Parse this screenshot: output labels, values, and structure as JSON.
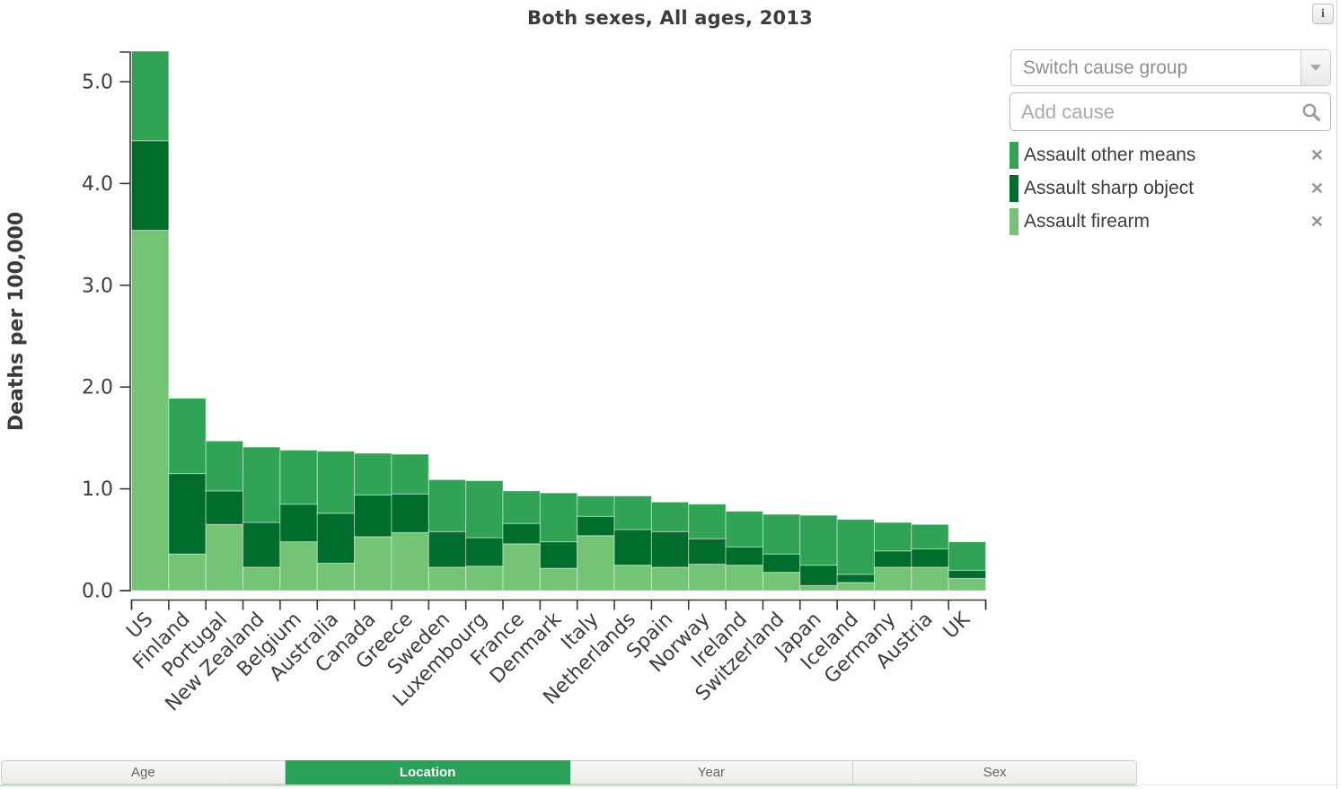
{
  "header": {
    "title": "Both sexes, All ages, 2013",
    "info_glyph": "i"
  },
  "controls": {
    "switch_cause_group_label": "Switch cause group",
    "add_cause_placeholder": "Add cause"
  },
  "legend": {
    "items": [
      {
        "label": "Assault other means",
        "color": "#31a354"
      },
      {
        "label": "Assault sharp object",
        "color": "#006d2c"
      },
      {
        "label": "Assault firearm",
        "color": "#74c476"
      }
    ],
    "remove_glyph": "✕"
  },
  "tabs": [
    {
      "label": "Age",
      "selected": false
    },
    {
      "label": "Location",
      "selected": true
    },
    {
      "label": "Year",
      "selected": false
    },
    {
      "label": "Sex",
      "selected": false
    }
  ],
  "colors": {
    "tab_selected": "#2aa158",
    "axis": "#3a3a3a"
  },
  "chart_data": {
    "type": "bar",
    "stacked": true,
    "title": "Both sexes, All ages, 2013",
    "xlabel": "",
    "ylabel": "Deaths per 100,000",
    "ylim": [
      0,
      5.3
    ],
    "yticks": [
      0,
      1,
      2,
      3,
      4,
      5
    ],
    "ytick_labels": [
      "0.0",
      "1.0",
      "2.0",
      "3.0",
      "4.0",
      "5.0"
    ],
    "grid": false,
    "legend_position": "right",
    "series_order": "bottom to top",
    "categories": [
      "US",
      "Finland",
      "Portugal",
      "New Zealand",
      "Belgium",
      "Australia",
      "Canada",
      "Greece",
      "Sweden",
      "Luxembourg",
      "France",
      "Denmark",
      "Italy",
      "Netherlands",
      "Spain",
      "Norway",
      "Ireland",
      "Switzerland",
      "Japan",
      "Iceland",
      "Germany",
      "Austria",
      "UK"
    ],
    "series": [
      {
        "name": "Assault firearm",
        "color": "#74c476",
        "values": [
          3.54,
          0.36,
          0.65,
          0.23,
          0.48,
          0.27,
          0.53,
          0.57,
          0.23,
          0.24,
          0.46,
          0.22,
          0.54,
          0.25,
          0.23,
          0.26,
          0.25,
          0.18,
          0.05,
          0.08,
          0.23,
          0.23,
          0.12
        ]
      },
      {
        "name": "Assault sharp object",
        "color": "#006d2c",
        "values": [
          0.88,
          0.79,
          0.33,
          0.44,
          0.37,
          0.49,
          0.41,
          0.38,
          0.35,
          0.28,
          0.2,
          0.26,
          0.19,
          0.35,
          0.35,
          0.25,
          0.18,
          0.18,
          0.2,
          0.08,
          0.16,
          0.18,
          0.08
        ]
      },
      {
        "name": "Assault other means",
        "color": "#31a354",
        "values": [
          0.88,
          0.74,
          0.49,
          0.74,
          0.53,
          0.61,
          0.41,
          0.39,
          0.51,
          0.56,
          0.32,
          0.48,
          0.2,
          0.33,
          0.29,
          0.34,
          0.35,
          0.39,
          0.49,
          0.54,
          0.28,
          0.24,
          0.28
        ]
      }
    ],
    "totals": [
      5.3,
      1.89,
      1.47,
      1.41,
      1.38,
      1.37,
      1.35,
      1.34,
      1.09,
      1.08,
      0.98,
      0.96,
      0.93,
      0.93,
      0.87,
      0.85,
      0.78,
      0.75,
      0.74,
      0.7,
      0.67,
      0.65,
      0.48
    ]
  }
}
